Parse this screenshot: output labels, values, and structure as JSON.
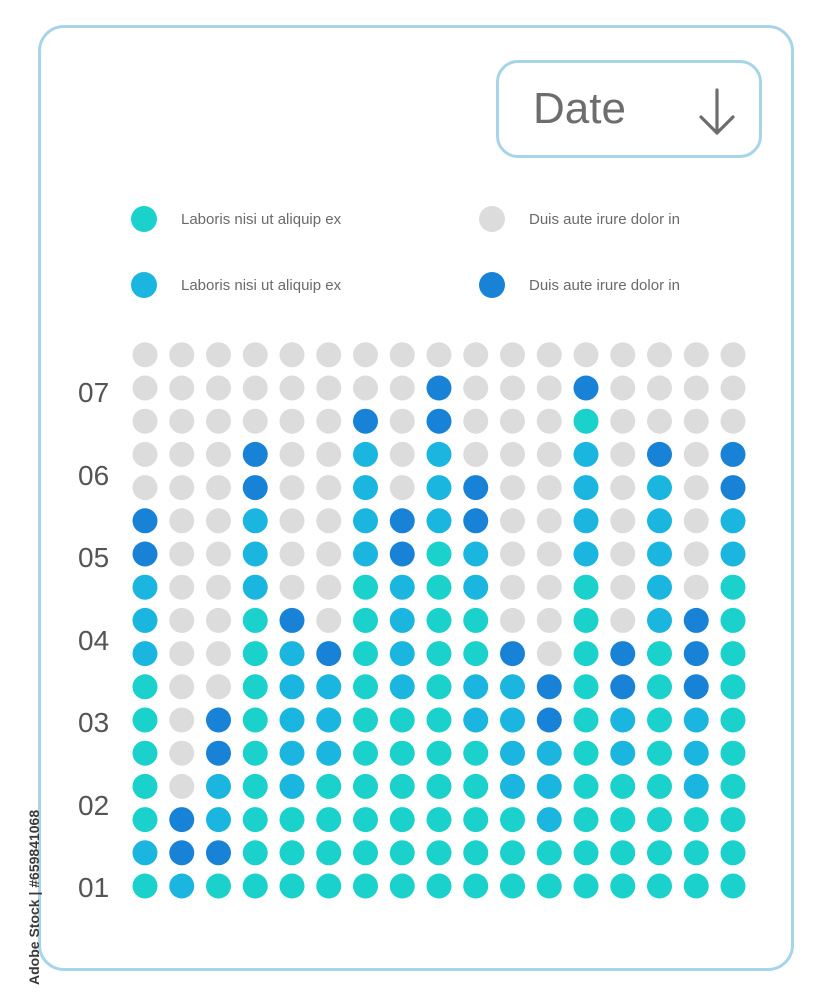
{
  "controls": {
    "date_label": "Date",
    "arrow_icon": "arrow-down-icon"
  },
  "legend": [
    {
      "label": "Laboris nisi ut aliquip ex",
      "color": "#1ad1cc"
    },
    {
      "label": "Duis aute irure dolor in",
      "color": "#dcdcdc"
    },
    {
      "label": "Laboris nisi ut aliquip ex",
      "color": "#1ab6e0"
    },
    {
      "label": "Duis aute irure dolor in",
      "color": "#1782d6"
    }
  ],
  "side_text": "Adobe Stock | #659841068",
  "chart_data": {
    "type": "dot-matrix",
    "title": "",
    "xlabel": "",
    "ylabel": "",
    "y_tick_labels": [
      "01",
      "02",
      "03",
      "04",
      "05",
      "06",
      "07"
    ],
    "rows": 17,
    "colors": {
      "teal": "#1ad1cc",
      "light-blue": "#1ab6e0",
      "blue": "#1782d6",
      "empty": "#dcdcdc"
    },
    "columns": [
      [
        "teal",
        "light-blue",
        "teal",
        "teal",
        "teal",
        "teal",
        "teal",
        "light-blue",
        "light-blue",
        "light-blue",
        "blue",
        "blue"
      ],
      [
        "light-blue",
        "blue",
        "blue"
      ],
      [
        "teal",
        "blue",
        "light-blue",
        "light-blue",
        "blue",
        "blue"
      ],
      [
        "teal",
        "teal",
        "teal",
        "teal",
        "teal",
        "teal",
        "teal",
        "teal",
        "teal",
        "light-blue",
        "light-blue",
        "light-blue",
        "blue",
        "blue"
      ],
      [
        "teal",
        "teal",
        "teal",
        "light-blue",
        "light-blue",
        "light-blue",
        "light-blue",
        "light-blue",
        "blue"
      ],
      [
        "teal",
        "teal",
        "teal",
        "teal",
        "light-blue",
        "light-blue",
        "light-blue",
        "blue"
      ],
      [
        "teal",
        "teal",
        "teal",
        "teal",
        "teal",
        "teal",
        "teal",
        "teal",
        "teal",
        "teal",
        "light-blue",
        "light-blue",
        "light-blue",
        "light-blue",
        "blue"
      ],
      [
        "teal",
        "teal",
        "teal",
        "teal",
        "teal",
        "teal",
        "light-blue",
        "light-blue",
        "light-blue",
        "light-blue",
        "blue",
        "blue"
      ],
      [
        "teal",
        "teal",
        "teal",
        "teal",
        "teal",
        "teal",
        "teal",
        "teal",
        "teal",
        "teal",
        "teal",
        "light-blue",
        "light-blue",
        "light-blue",
        "blue",
        "blue"
      ],
      [
        "teal",
        "teal",
        "teal",
        "teal",
        "teal",
        "light-blue",
        "light-blue",
        "teal",
        "teal",
        "light-blue",
        "light-blue",
        "blue",
        "blue"
      ],
      [
        "teal",
        "teal",
        "teal",
        "light-blue",
        "light-blue",
        "light-blue",
        "light-blue",
        "blue"
      ],
      [
        "teal",
        "teal",
        "light-blue",
        "light-blue",
        "light-blue",
        "blue",
        "blue"
      ],
      [
        "teal",
        "teal",
        "teal",
        "teal",
        "teal",
        "teal",
        "teal",
        "teal",
        "teal",
        "teal",
        "light-blue",
        "light-blue",
        "light-blue",
        "light-blue",
        "teal",
        "blue"
      ],
      [
        "teal",
        "teal",
        "teal",
        "teal",
        "light-blue",
        "light-blue",
        "blue",
        "blue"
      ],
      [
        "teal",
        "teal",
        "teal",
        "teal",
        "teal",
        "teal",
        "teal",
        "teal",
        "light-blue",
        "light-blue",
        "light-blue",
        "light-blue",
        "light-blue",
        "blue"
      ],
      [
        "teal",
        "teal",
        "teal",
        "light-blue",
        "light-blue",
        "light-blue",
        "blue",
        "blue",
        "blue"
      ],
      [
        "teal",
        "teal",
        "teal",
        "teal",
        "teal",
        "teal",
        "teal",
        "teal",
        "teal",
        "teal",
        "light-blue",
        "light-blue",
        "blue",
        "blue"
      ]
    ]
  }
}
